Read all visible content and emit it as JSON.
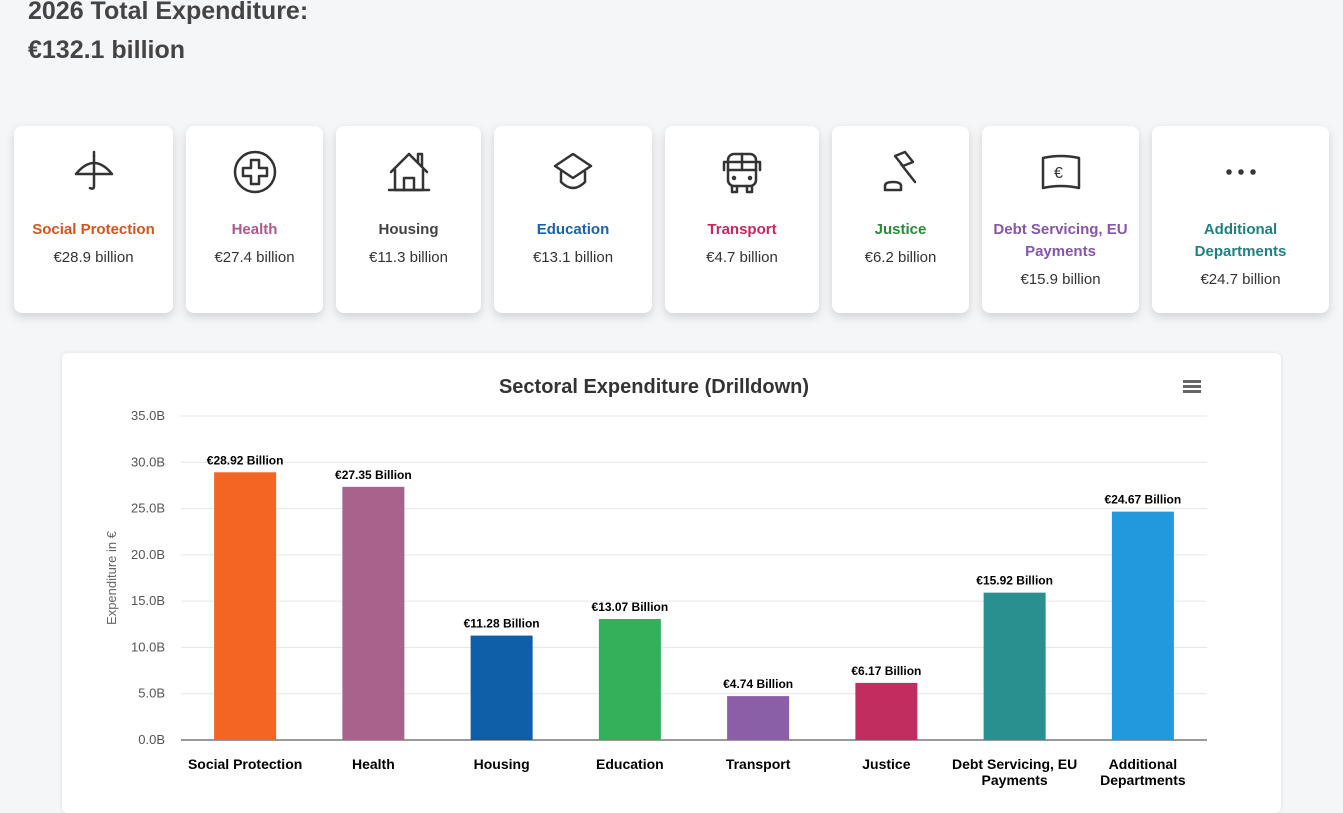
{
  "header": {
    "line1": "2026 Total Expenditure:",
    "line2": "€132.1 billion"
  },
  "cards": [
    {
      "name": "Social Protection",
      "value": "€28.9 billion",
      "icon": "umbrella-icon",
      "color": "#d4541f"
    },
    {
      "name": "Health",
      "value": "€27.4 billion",
      "icon": "medical-cross-icon",
      "color": "#b0578e"
    },
    {
      "name": "Housing",
      "value": "€11.3 billion",
      "icon": "house-icon",
      "color": "#444444"
    },
    {
      "name": "Education",
      "value": "€13.1 billion",
      "icon": "graduation-cap-icon",
      "color": "#1a62ad"
    },
    {
      "name": "Transport",
      "value": "€4.7 billion",
      "icon": "bus-icon",
      "color": "#c8285a"
    },
    {
      "name": "Justice",
      "value": "€6.2 billion",
      "icon": "gavel-icon",
      "color": "#2a8a3a"
    },
    {
      "name": "Debt Servicing, EU Payments",
      "value": "€15.9 billion",
      "icon": "euro-banknote-icon",
      "color": "#8855aa"
    },
    {
      "name": "Additional Departments",
      "value": "€24.7 billion",
      "icon": "ellipsis-icon",
      "color": "#1f8080"
    }
  ],
  "chart_data": {
    "type": "bar",
    "title": "Sectoral Expenditure (Drilldown)",
    "xlabel": "",
    "ylabel": "Expenditure in €",
    "ylim": [
      0,
      35
    ],
    "yticks": [
      "0.0B",
      "5.0B",
      "10.0B",
      "15.0B",
      "20.0B",
      "25.0B",
      "30.0B",
      "35.0B"
    ],
    "categories": [
      "Social Protection",
      "Health",
      "Housing",
      "Education",
      "Transport",
      "Justice",
      "Debt Servicing, EU Payments",
      "Additional Departments"
    ],
    "values": [
      28.92,
      27.35,
      11.28,
      13.07,
      4.74,
      6.17,
      15.92,
      24.67
    ],
    "labels": [
      "€28.92 Billion",
      "€27.35 Billion",
      "€11.28 Billion",
      "€13.07 Billion",
      "€4.74 Billion",
      "€6.17 Billion",
      "€15.92 Billion",
      "€24.67 Billion"
    ],
    "colors": [
      "#f26522",
      "#a8628c",
      "#0e5fa8",
      "#34b05a",
      "#8b5ea8",
      "#c02d5e",
      "#2a8f8f",
      "#2299dd"
    ],
    "grid": true,
    "legend": "none"
  }
}
